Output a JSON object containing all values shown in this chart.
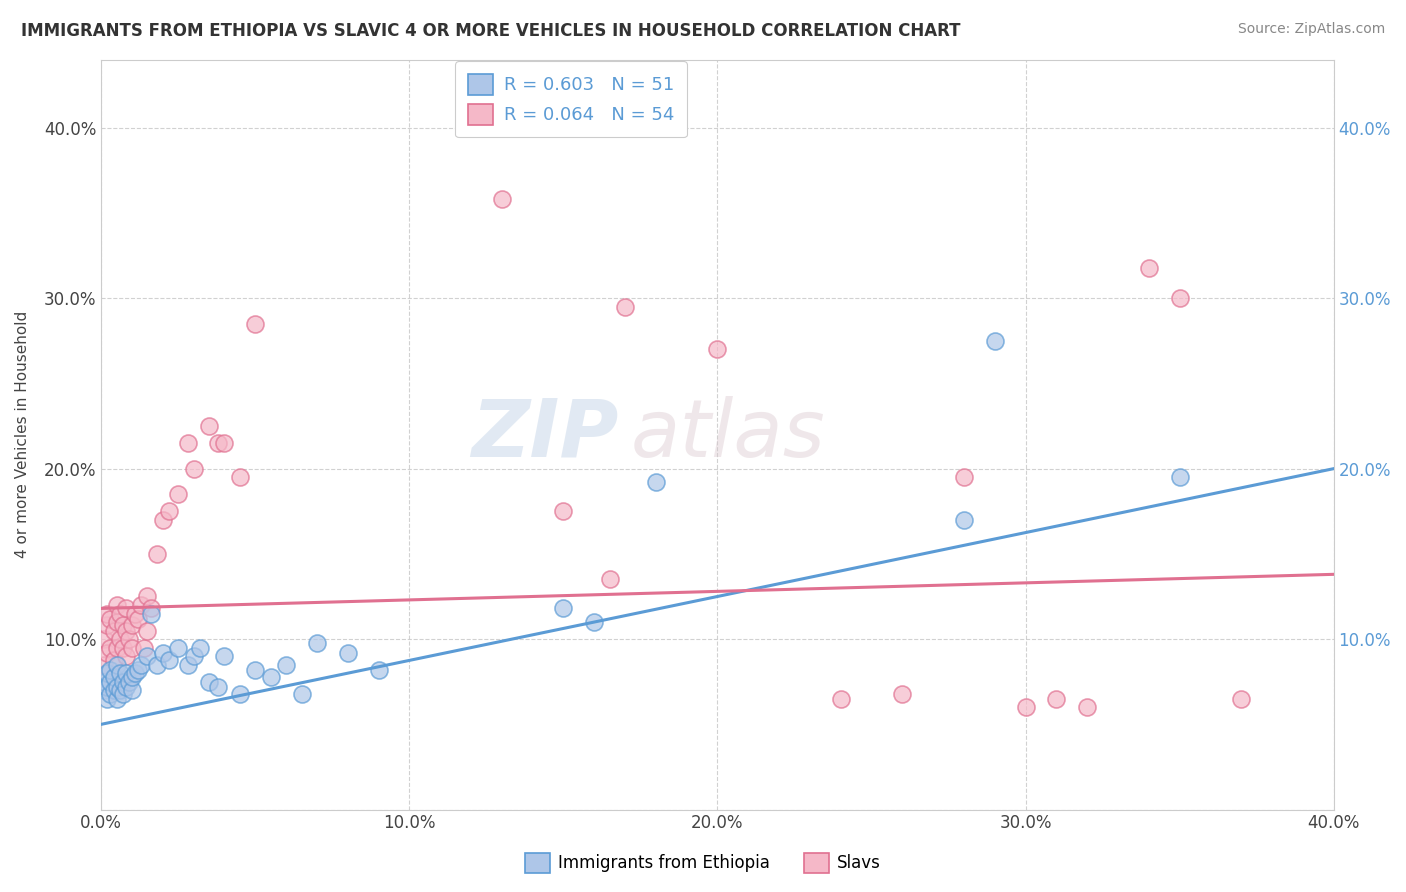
{
  "title": "IMMIGRANTS FROM ETHIOPIA VS SLAVIC 4 OR MORE VEHICLES IN HOUSEHOLD CORRELATION CHART",
  "source": "Source: ZipAtlas.com",
  "ylabel": "4 or more Vehicles in Household",
  "xlim": [
    0.0,
    0.4
  ],
  "ylim": [
    0.0,
    0.44
  ],
  "xticks": [
    0.0,
    0.1,
    0.2,
    0.3,
    0.4
  ],
  "yticks": [
    0.0,
    0.1,
    0.2,
    0.3,
    0.4
  ],
  "xticklabels": [
    "0.0%",
    "10.0%",
    "20.0%",
    "30.0%",
    "40.0%"
  ],
  "yticklabels": [
    "",
    "10.0%",
    "20.0%",
    "30.0%",
    "40.0%"
  ],
  "right_yticklabels": [
    "",
    "10.0%",
    "20.0%",
    "30.0%",
    "40.0%"
  ],
  "legend_labels": [
    "Immigrants from Ethiopia",
    "Slavs"
  ],
  "blue_R": "R = 0.603",
  "blue_N": "N = 51",
  "pink_R": "R = 0.064",
  "pink_N": "N = 54",
  "blue_color": "#aec6e8",
  "pink_color": "#f5b8c8",
  "blue_line_color": "#5b9bd5",
  "pink_line_color": "#e07090",
  "watermark_zip": "ZIP",
  "watermark_atlas": "atlas",
  "background_color": "#ffffff",
  "grid_color": "#cccccc",
  "blue_scatter_x": [
    0.001,
    0.001,
    0.002,
    0.002,
    0.002,
    0.003,
    0.003,
    0.003,
    0.004,
    0.004,
    0.005,
    0.005,
    0.005,
    0.006,
    0.006,
    0.007,
    0.007,
    0.008,
    0.008,
    0.009,
    0.01,
    0.01,
    0.011,
    0.012,
    0.013,
    0.015,
    0.016,
    0.018,
    0.02,
    0.022,
    0.025,
    0.028,
    0.03,
    0.032,
    0.035,
    0.038,
    0.04,
    0.045,
    0.05,
    0.055,
    0.06,
    0.065,
    0.07,
    0.08,
    0.09,
    0.15,
    0.16,
    0.18,
    0.28,
    0.29,
    0.35
  ],
  "blue_scatter_y": [
    0.07,
    0.075,
    0.065,
    0.072,
    0.08,
    0.068,
    0.075,
    0.082,
    0.07,
    0.078,
    0.065,
    0.072,
    0.085,
    0.07,
    0.08,
    0.075,
    0.068,
    0.072,
    0.08,
    0.075,
    0.07,
    0.078,
    0.08,
    0.082,
    0.085,
    0.09,
    0.115,
    0.085,
    0.092,
    0.088,
    0.095,
    0.085,
    0.09,
    0.095,
    0.075,
    0.072,
    0.09,
    0.068,
    0.082,
    0.078,
    0.085,
    0.068,
    0.098,
    0.092,
    0.082,
    0.118,
    0.11,
    0.192,
    0.17,
    0.275,
    0.195
  ],
  "pink_scatter_x": [
    0.001,
    0.001,
    0.002,
    0.002,
    0.002,
    0.003,
    0.003,
    0.004,
    0.004,
    0.005,
    0.005,
    0.005,
    0.006,
    0.006,
    0.007,
    0.007,
    0.008,
    0.008,
    0.008,
    0.009,
    0.01,
    0.01,
    0.011,
    0.012,
    0.013,
    0.014,
    0.015,
    0.015,
    0.016,
    0.018,
    0.02,
    0.022,
    0.025,
    0.028,
    0.03,
    0.035,
    0.038,
    0.04,
    0.045,
    0.05,
    0.13,
    0.15,
    0.165,
    0.17,
    0.2,
    0.24,
    0.26,
    0.28,
    0.3,
    0.31,
    0.32,
    0.34,
    0.35,
    0.37
  ],
  "pink_scatter_y": [
    0.085,
    0.1,
    0.092,
    0.108,
    0.115,
    0.095,
    0.112,
    0.088,
    0.105,
    0.095,
    0.11,
    0.12,
    0.1,
    0.115,
    0.095,
    0.108,
    0.09,
    0.105,
    0.118,
    0.1,
    0.095,
    0.108,
    0.115,
    0.112,
    0.12,
    0.095,
    0.105,
    0.125,
    0.118,
    0.15,
    0.17,
    0.175,
    0.185,
    0.215,
    0.2,
    0.225,
    0.215,
    0.215,
    0.195,
    0.285,
    0.358,
    0.175,
    0.135,
    0.295,
    0.27,
    0.065,
    0.068,
    0.195,
    0.06,
    0.065,
    0.06,
    0.318,
    0.3,
    0.065
  ],
  "blue_line_x0": 0.0,
  "blue_line_y0": 0.05,
  "blue_line_x1": 0.4,
  "blue_line_y1": 0.2,
  "pink_line_x0": 0.0,
  "pink_line_y0": 0.118,
  "pink_line_x1": 0.4,
  "pink_line_y1": 0.138
}
